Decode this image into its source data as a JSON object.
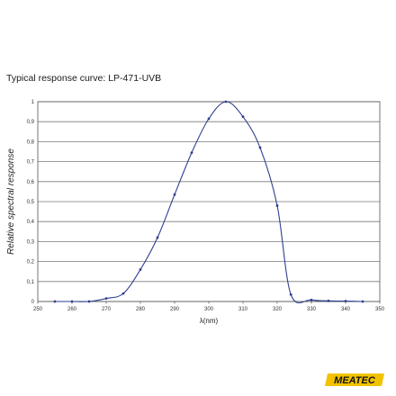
{
  "header": {
    "title": "Typical response curve: LP-471-UVB"
  },
  "chart_data": {
    "type": "line",
    "title": "Typical response curve: LP-471-UVB",
    "xlabel": "λ(nm)",
    "ylabel": "Relative spectral response",
    "xlim": [
      250,
      350
    ],
    "ylim": [
      0,
      1
    ],
    "xticks": [
      "250",
      "260",
      "270",
      "280",
      "290",
      "300",
      "310",
      "320",
      "330",
      "340",
      "350"
    ],
    "yticks": [
      "0",
      "0,1",
      "0,2",
      "0,3",
      "0,4",
      "0,5",
      "0,6",
      "0,7",
      "0,8",
      "0,9",
      "1"
    ],
    "grid": "horizontal",
    "series": [
      {
        "points": [
          [
            255,
            0
          ],
          [
            260,
            0
          ],
          [
            265,
            0
          ],
          [
            270,
            0.015
          ],
          [
            275,
            0.04
          ],
          [
            280,
            0.16
          ],
          [
            285,
            0.32
          ],
          [
            290,
            0.535
          ],
          [
            295,
            0.745
          ],
          [
            300,
            0.915
          ],
          [
            305,
            1.0
          ],
          [
            310,
            0.925
          ],
          [
            315,
            0.77
          ],
          [
            320,
            0.48
          ],
          [
            324,
            0.035
          ],
          [
            330,
            0.008
          ],
          [
            335,
            0.003
          ],
          [
            340,
            0.002
          ],
          [
            345,
            0
          ]
        ],
        "color": "#2e3f8f"
      }
    ]
  },
  "logo": {
    "text": "MEATEC",
    "colors": {
      "bg": "#f2c200",
      "fg": "#111111"
    }
  }
}
